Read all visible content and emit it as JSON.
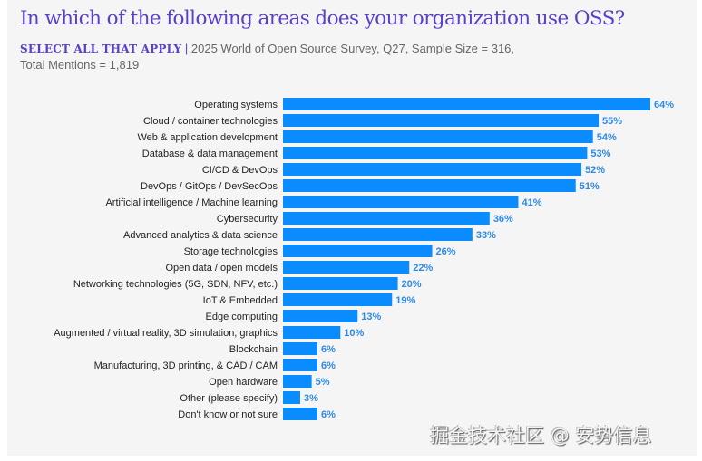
{
  "header": {
    "title": "In which of the following areas does your organization use OSS?",
    "select_label": "SELECT ALL THAT APPLY",
    "separator": "|",
    "source": "2025 World of Open Source Survey, Q27, Sample Size = 316,",
    "mentions": "Total Mentions = 1,819"
  },
  "watermark": "掘金技术社区 @ 安势信息",
  "colors": {
    "bar": "#0a8cff",
    "value_label": "#2e8ae6",
    "title": "#5a3fc8",
    "background": "#f5f5f6"
  },
  "chart_data": {
    "type": "bar",
    "orientation": "horizontal",
    "title": "In which of the following areas does your organization use OSS?",
    "categories": [
      "Operating systems",
      "Cloud / container technologies",
      "Web & application development",
      "Database & data management",
      "CI/CD & DevOps",
      "DevOps / GitOps / DevSecOps",
      "Artificial intelligence / Machine learning",
      "Cybersecurity",
      "Advanced analytics & data science",
      "Storage technologies",
      "Open data / open models",
      "Networking technologies (5G, SDN, NFV, etc.)",
      "IoT & Embedded",
      "Edge computing",
      "Augmented / virtual reality, 3D simulation, graphics",
      "Blockchain",
      "Manufacturing, 3D printing, & CAD / CAM",
      "Open hardware",
      "Other (please specify)",
      "Don't know or not sure"
    ],
    "values": [
      64,
      55,
      54,
      53,
      52,
      51,
      41,
      36,
      33,
      26,
      22,
      20,
      19,
      13,
      10,
      6,
      6,
      5,
      3,
      6
    ],
    "value_labels": [
      "64%",
      "55%",
      "54%",
      "53%",
      "52%",
      "51%",
      "41%",
      "36%",
      "33%",
      "26%",
      "22%",
      "20%",
      "19%",
      "13%",
      "10%",
      "6%",
      "6%",
      "5%",
      "3%",
      "6%"
    ],
    "unit": "%",
    "xlim": [
      0,
      64
    ],
    "grid": false,
    "legend": "none"
  }
}
